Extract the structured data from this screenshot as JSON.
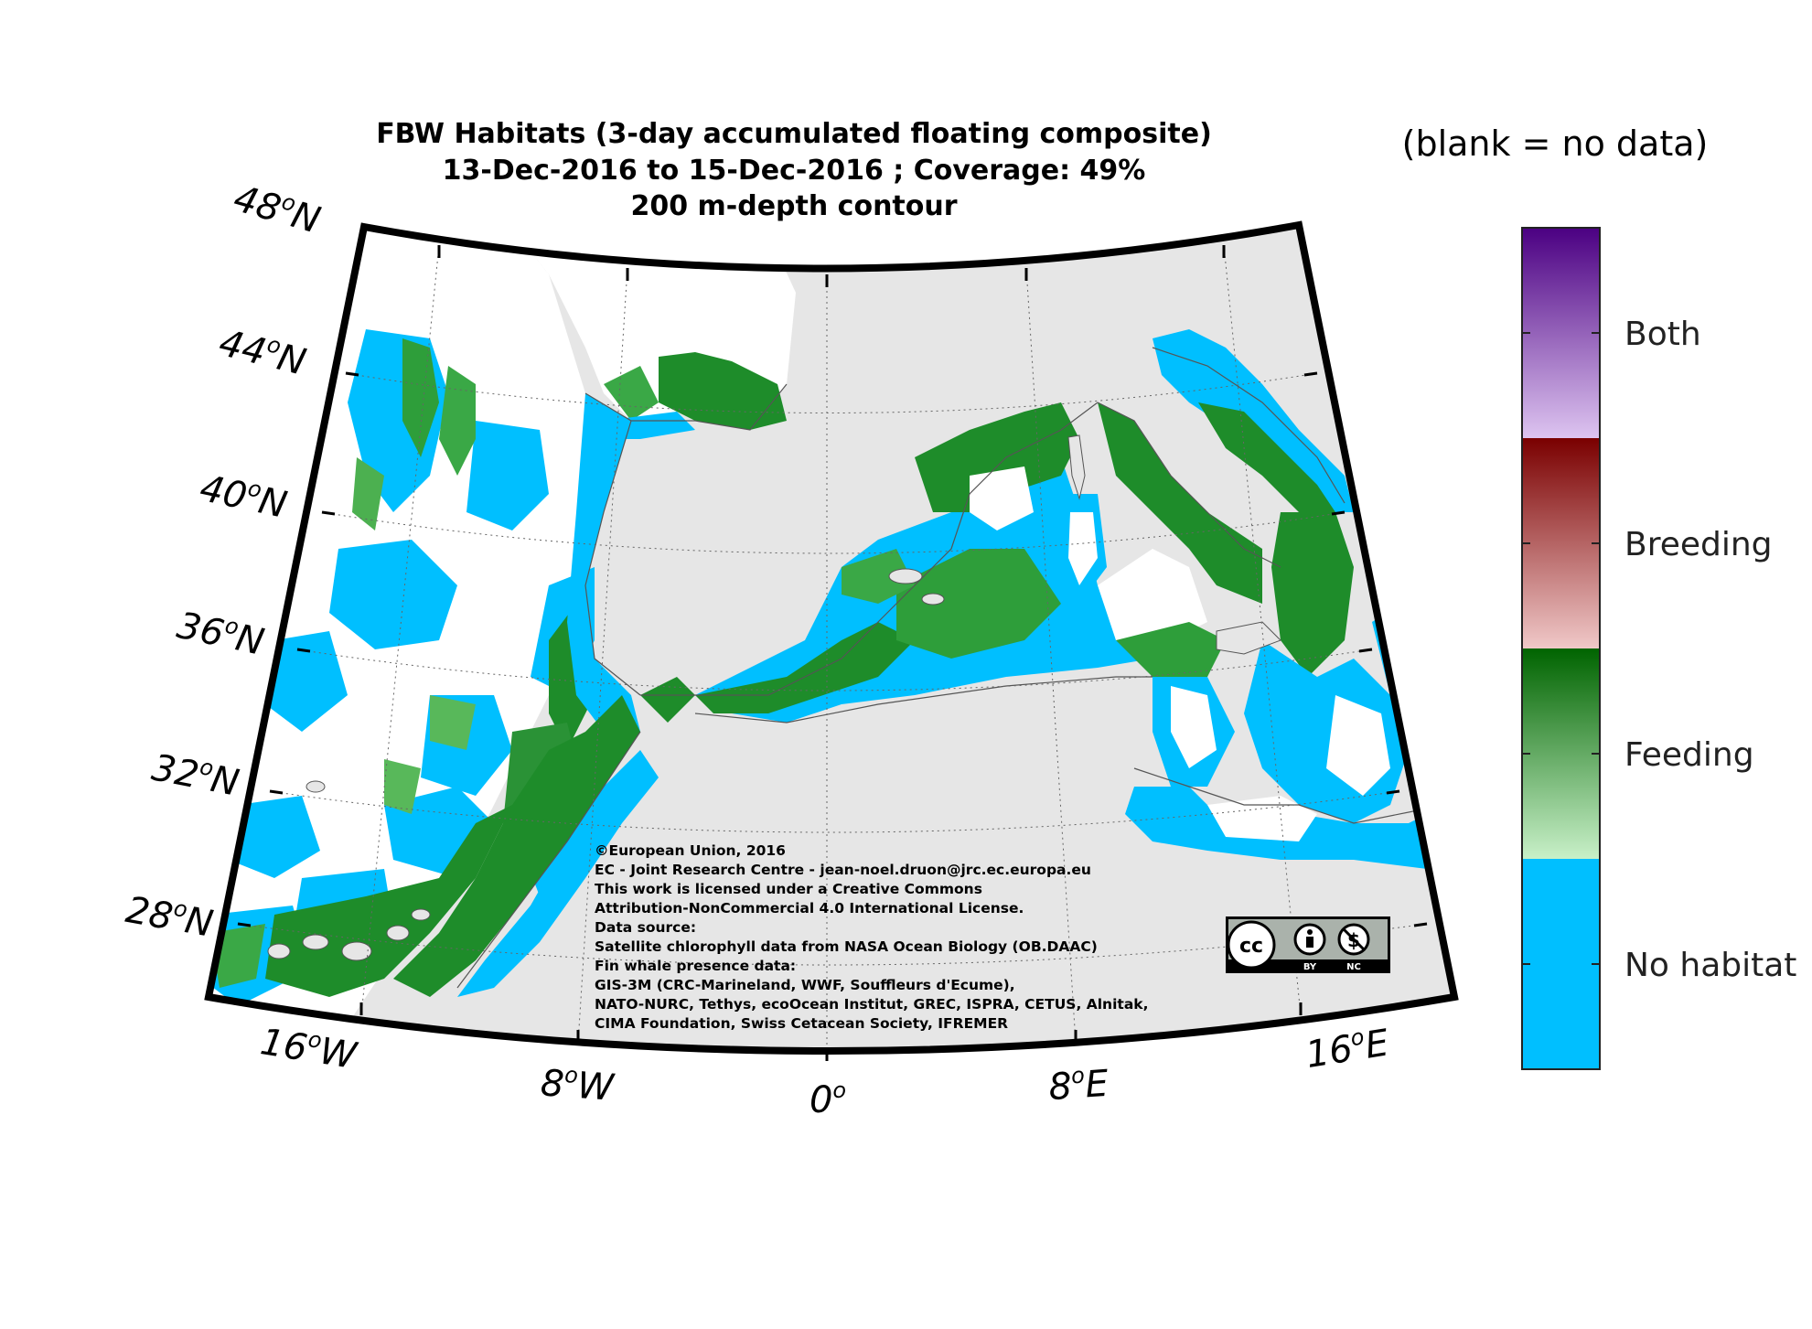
{
  "title": {
    "line1": "FBW  Habitats (3-day accumulated floating composite)",
    "line2": "13-Dec-2016 to 15-Dec-2016 ; Coverage: 49%",
    "line3": "200 m-depth contour"
  },
  "no_data_note": "(blank = no data)",
  "axes": {
    "lat_labels": [
      "48",
      "44",
      "40",
      "36",
      "32",
      "28"
    ],
    "lon_labels": [
      "16",
      "8",
      "0",
      "8",
      "16"
    ],
    "lat_hemisphere": "N",
    "lon_hemispheres": [
      "W",
      "W",
      "",
      "E",
      "E"
    ],
    "degree_symbol": "o"
  },
  "colorbar": {
    "categories": [
      "No habitat",
      "Feeding",
      "Breeding",
      "Both"
    ],
    "colors": {
      "no_habitat": "#00bfff",
      "feeding_dark": "#006400",
      "feeding_light": "#c8f0c8",
      "breeding_dark": "#7a0000",
      "breeding_light": "#f0c8c8",
      "both_dark": "#4b0082",
      "both_light": "#ddc4f0"
    }
  },
  "map_colors": {
    "land": "#e6e6e6",
    "no_data": "#ffffff",
    "no_habitat": "#00bfff",
    "feeding": "#1e8c2a",
    "feeding_light": "#6cc46c",
    "frame": "#000000",
    "coast": "#555555"
  },
  "credits": [
    "©European Union, 2016",
    "EC - Joint Research Centre - jean-noel.druon@jrc.ec.europa.eu",
    "This work is licensed under a Creative Commons",
    "Attribution-NonCommercial 4.0 International License.",
    "Data source:",
    "Satellite chlorophyll data from NASA Ocean Biology (OB.DAAC)",
    "Fin whale presence data:",
    "GIS-3M (CRC-Marineland, WWF, Souffleurs d'Ecume),",
    "NATO-NURC, Tethys, ecoOcean Institut, GREC, ISPRA, CETUS, Alnitak,",
    "CIMA Foundation, Swiss Cetacean Society, IFREMER"
  ],
  "cc_badge": {
    "cc": "cc",
    "by": "BY",
    "nc": "NC",
    "icon": "creative-commons-by-nc-icon"
  }
}
